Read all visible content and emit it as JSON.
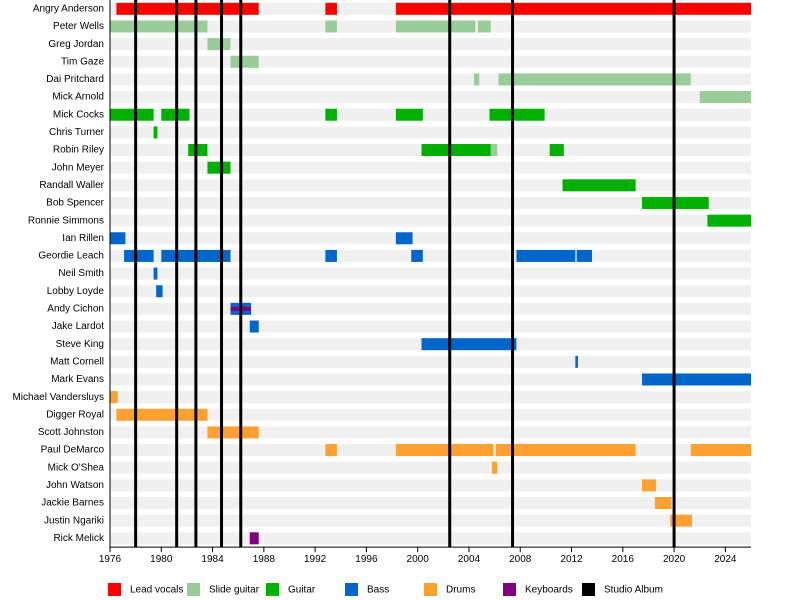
{
  "chart_data": {
    "type": "timeline",
    "categories": [
      "Angry Anderson",
      "Peter Wells",
      "Greg Jordan",
      "Tim Gaze",
      "Dai Pritchard",
      "Mick Arnold",
      "Mick Cocks",
      "Chris Turner",
      "Robin Riley",
      "John Meyer",
      "Randall Waller",
      "Bob Spencer",
      "Ronnie Simmons",
      "Ian Rillen",
      "Geordie Leach",
      "Neil Smith",
      "Lobby Loyde",
      "Andy Cichon",
      "Jake Lardot",
      "Steve King",
      "Matt Cornell",
      "Mark Evans",
      "Michael Vandersluys",
      "Digger Royal",
      "Scott Johnston",
      "Paul DeMarco",
      "Mick O'Shea",
      "John Watson",
      "Jackie Barnes",
      "Justin Ngariki",
      "Rick Melick"
    ],
    "series": [
      {
        "name": "Lead vocals",
        "color": "#ff0000",
        "values": [
          [
            [
              1976.5,
              1987.6
            ],
            [
              1992.8,
              1993.7
            ],
            [
              1998.3,
              2026
            ]
          ],
          [],
          [],
          [],
          [],
          [],
          [],
          [],
          [],
          [],
          [],
          [],
          [],
          [],
          [],
          [],
          [],
          [],
          [],
          [],
          [],
          [],
          [],
          [],
          [],
          [],
          [],
          [],
          [],
          [],
          []
        ]
      },
      {
        "name": "Slide guitar",
        "color": "#99cc99",
        "values": [
          [],
          [
            [
              1976,
              1983.6
            ],
            [
              1992.8,
              1993.7
            ],
            [
              1998.3,
              2004.5
            ],
            [
              2004.7,
              2005.7
            ]
          ],
          [
            [
              1983.6,
              1985.4
            ]
          ],
          [
            [
              1985.4,
              1987.6
            ]
          ],
          [
            [
              2004.4,
              2004.8
            ],
            [
              2006.3,
              2021.3
            ]
          ],
          [
            [
              2022,
              2026
            ]
          ],
          [],
          [],
          [
            [
              2005.7,
              2006.2
            ]
          ],
          [],
          [],
          [],
          [],
          [],
          [],
          [],
          [],
          [],
          [],
          [],
          [],
          [],
          [],
          [],
          [],
          [],
          [],
          [],
          [],
          [],
          []
        ]
      },
      {
        "name": "Guitar",
        "color": "#00b000",
        "values": [
          [],
          [],
          [],
          [],
          [],
          [],
          [
            [
              1976,
              1979.4
            ],
            [
              1980,
              1982.2
            ],
            [
              1992.8,
              1993.7
            ],
            [
              1998.3,
              2000.4
            ],
            [
              2005.6,
              2009.9
            ]
          ],
          [
            [
              1979.4,
              1979.7
            ]
          ],
          [
            [
              1982.1,
              1983.6
            ],
            [
              2000.3,
              2005.7
            ],
            [
              2010.3,
              2011.4
            ]
          ],
          [
            [
              1983.6,
              1985.4
            ]
          ],
          [
            [
              2011.3,
              2017
            ]
          ],
          [
            [
              2017.5,
              2022.7
            ]
          ],
          [
            [
              2022.6,
              2026
            ]
          ],
          [],
          [],
          [],
          [],
          [],
          [],
          [],
          [],
          [],
          [],
          [],
          [],
          [],
          [],
          [],
          [],
          [],
          []
        ]
      },
      {
        "name": "Bass",
        "color": "#0066cc",
        "values": [
          [],
          [],
          [],
          [],
          [],
          [],
          [],
          [],
          [],
          [],
          [],
          [],
          [],
          [
            [
              1976,
              1977.2
            ],
            [
              1998.3,
              1999.6
            ]
          ],
          [
            [
              1977.1,
              1979.4
            ],
            [
              1980,
              1985.4
            ],
            [
              1992.8,
              1993.7
            ],
            [
              1999.5,
              2000.4
            ],
            [
              2007.7,
              2012.3
            ],
            [
              2012.4,
              2013.6
            ]
          ],
          [
            [
              1979.4,
              1979.7
            ]
          ],
          [
            [
              1979.6,
              1980.1
            ]
          ],
          [
            [
              1985.4,
              1987
            ]
          ],
          [
            [
              1986.9,
              1987.6
            ]
          ],
          [
            [
              2000.3,
              2007.7
            ]
          ],
          [
            [
              2012.3,
              2012.5
            ]
          ],
          [
            [
              2017.5,
              2026
            ]
          ],
          [],
          [],
          [],
          [],
          [],
          [],
          [],
          [],
          []
        ]
      },
      {
        "name": "Drums",
        "color": "#ffa030",
        "values": [
          [],
          [],
          [],
          [],
          [],
          [],
          [],
          [],
          [],
          [],
          [],
          [],
          [],
          [],
          [],
          [],
          [],
          [],
          [],
          [],
          [],
          [],
          [
            [
              1976,
              1976.6
            ]
          ],
          [
            [
              1976.5,
              1983.6
            ]
          ],
          [
            [
              1983.6,
              1987.6
            ]
          ],
          [
            [
              1992.8,
              1993.7
            ],
            [
              1998.3,
              2005.9
            ],
            [
              2006.1,
              2017
            ],
            [
              2021.3,
              2026
            ]
          ],
          [
            [
              2005.8,
              2006.2
            ]
          ],
          [
            [
              2017.5,
              2018.6
            ]
          ],
          [
            [
              2018.5,
              2019.8
            ]
          ],
          [
            [
              2019.7,
              2021.4
            ]
          ],
          []
        ]
      },
      {
        "name": "Keyboards",
        "color": "#800080",
        "values": [
          [],
          [],
          [],
          [],
          [],
          [],
          [],
          [],
          [],
          [],
          [],
          [],
          [],
          [],
          [],
          [],
          [],
          [
            [
              1985.4,
              1987
            ]
          ],
          [],
          [],
          [],
          [],
          [],
          [],
          [],
          [],
          [],
          [],
          [],
          [],
          [
            [
              1986.9,
              1987.6
            ]
          ]
        ]
      }
    ],
    "markers": {
      "name": "Studio Album",
      "color": "#000000",
      "values": [
        1978,
        1981.2,
        1982.7,
        1984.7,
        1986.2,
        2002.5,
        2007.4,
        2020
      ]
    },
    "xlim": [
      1976,
      2026
    ],
    "xticks": [
      1976,
      1980,
      1984,
      1988,
      1992,
      1996,
      2000,
      2004,
      2008,
      2012,
      2016,
      2020,
      2024
    ]
  }
}
